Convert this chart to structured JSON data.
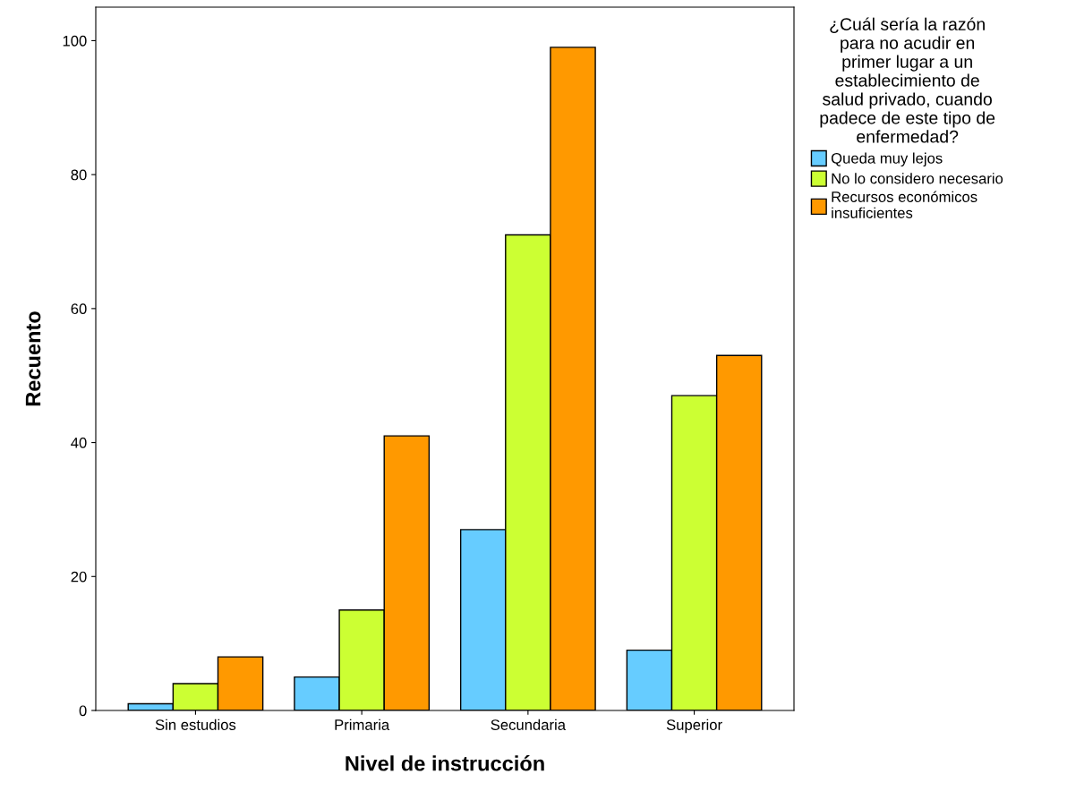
{
  "chart_data": {
    "type": "bar",
    "xlabel": "Nivel de instrucción",
    "ylabel": "Recuento",
    "legend_title": "¿Cuál sería la razón\npara no acudir en\nprimer lugar a un\nestablecimiento de\nsalud privado, cuando\npadece de este tipo de\nenfermedad?",
    "categories": [
      "Sin estudios",
      "Primaria",
      "Secundaria",
      "Superior"
    ],
    "series": [
      {
        "name": "Queda muy lejos",
        "color": "#66ccff",
        "values": [
          1,
          5,
          27,
          9
        ]
      },
      {
        "name": "No lo considero necesario",
        "color": "#ccff33",
        "values": [
          4,
          15,
          71,
          47
        ]
      },
      {
        "name": "Recursos económicos\ninsuficientes",
        "color": "#ff9900",
        "values": [
          8,
          41,
          99,
          53
        ]
      }
    ],
    "ylim": [
      0,
      105
    ],
    "yticks": [
      0,
      20,
      40,
      60,
      80,
      100
    ],
    "grid": false,
    "legend": "right"
  }
}
